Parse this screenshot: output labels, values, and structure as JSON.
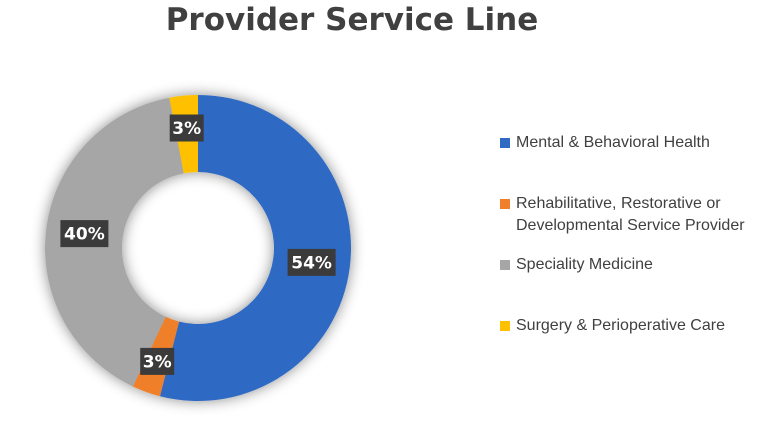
{
  "chart_data": {
    "type": "pie",
    "title": "Provider Service Line",
    "slices": [
      {
        "label": "Mental & Behavioral Health",
        "value": 54,
        "data_label": "54%",
        "color": "#2F6AC3"
      },
      {
        "label": "Rehabilitative, Restorative or Developmental Service Provider",
        "value": 3,
        "data_label": "3%",
        "color": "#F07F2B"
      },
      {
        "label": "Speciality Medicine",
        "value": 40,
        "data_label": "40%",
        "color": "#A6A6A6"
      },
      {
        "label": "Surgery & Perioperative Care",
        "value": 3,
        "data_label": "3%",
        "color": "#FFC000"
      }
    ],
    "legend_position": "right",
    "label_box_color": "#3B3B3B",
    "label_text_color": "#FFFFFF"
  }
}
